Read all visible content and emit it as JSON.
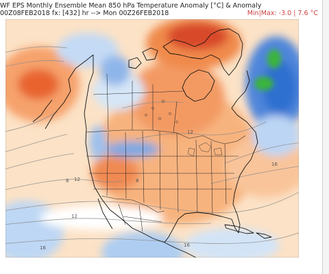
{
  "header": {
    "line1": "WF EPS Monthly Ensemble Mean 850 hPa Temperature Anomaly [°C] & Anomaly",
    "line2": "00Z08FEB2018 fx: [432] hr --> Mon 00Z26FEB2018",
    "minmax_label": "Min|Max:",
    "min_value": "-3.0",
    "max_value": "7.6",
    "unit": "°C"
  },
  "map": {
    "contour_labels": [
      "12",
      "12",
      "8",
      "8",
      "12",
      "16",
      "16",
      "16"
    ],
    "colors": {
      "ocean_warm_light": "#fde3c8",
      "warm_mid": "#f7b07a",
      "warm_strong": "#f08a4b",
      "warm_max": "#d8482a",
      "cold_light": "#d8e7f7",
      "cold_mid": "#8fb6ea",
      "cold_strong": "#3f7ad6",
      "cold_max_green": "#3bb53a",
      "neutral": "#ffffff"
    }
  }
}
